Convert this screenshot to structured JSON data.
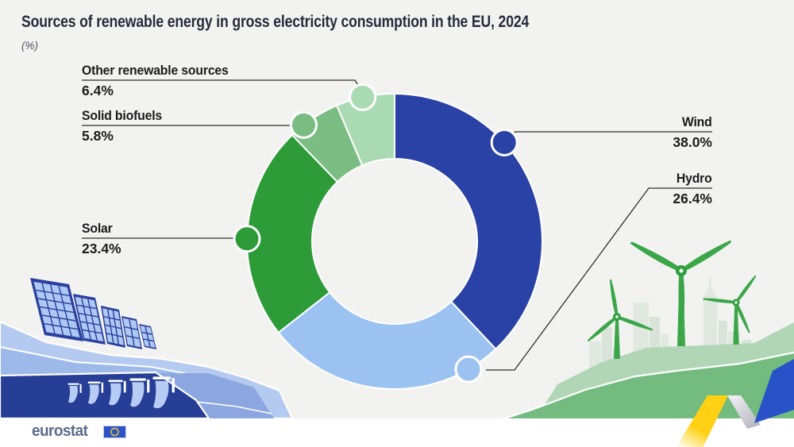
{
  "title": "Sources of renewable energy in gross electricity consumption in the EU, 2024",
  "subtitle": "(%)",
  "chart_data": {
    "type": "pie",
    "donut": true,
    "title": "Sources of renewable energy in gross electricity consumption in the EU, 2024",
    "unit": "%",
    "start_angle_deg": 0,
    "clockwise": true,
    "total": 100,
    "slices": [
      {
        "label": "Wind",
        "value": 38.0,
        "display": "38.0%",
        "color": "#2a42a6"
      },
      {
        "label": "Hydro",
        "value": 26.4,
        "display": "26.4%",
        "color": "#9cc2f1"
      },
      {
        "label": "Solar",
        "value": 23.4,
        "display": "23.4%",
        "color": "#2e9b39"
      },
      {
        "label": "Solid biofuels",
        "value": 5.8,
        "display": "5.8%",
        "color": "#7abc81"
      },
      {
        "label": "Other renewable sources",
        "value": 6.4,
        "display": "6.4%",
        "color": "#a9dab1"
      }
    ]
  },
  "footer": {
    "logo_text": "eurostat"
  },
  "icons": {
    "eu_flag": "eu-flag-icon",
    "illustrations": [
      "solar-panels",
      "hydroelectric-dam",
      "wind-turbines",
      "city-skyline",
      "eurostat-yellow-blue-ribbon"
    ]
  },
  "colors": {
    "background": "#f2f3f1",
    "title_text": "#262b3a",
    "label_text": "#1b1b1b",
    "leader_line": "#2e2e2e",
    "logo_text": "#5b6b8c",
    "flag_blue": "#2d53c6",
    "star_yellow": "#ffd617",
    "ribbon_yellow": "#ffd013",
    "ribbon_blue": "#2a52c8"
  }
}
